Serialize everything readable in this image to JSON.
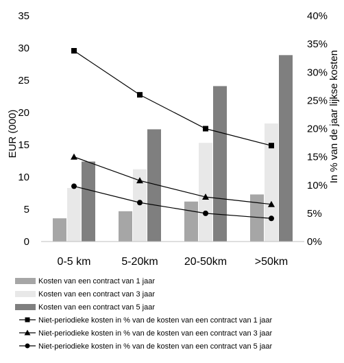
{
  "chart_data": {
    "type": "bar",
    "title": "",
    "categories": [
      "0-5 km",
      "5-20km",
      "20-50km",
      ">50km"
    ],
    "ylabel": "EUR (000)",
    "ylabel_right": "In % van de jaar lijkse kosten",
    "ylim": [
      0,
      35
    ],
    "yticks": [
      "0",
      "5",
      "10",
      "15",
      "20",
      "25",
      "30",
      "35"
    ],
    "ylim_right": [
      0,
      40
    ],
    "yticks_right": [
      "0%",
      "5%",
      "10%",
      "15%",
      "20%",
      "25%",
      "30%",
      "35%",
      "40%"
    ],
    "grid": false,
    "legend_position": "bottom",
    "series": [
      {
        "name": "Kosten van een contract van 1 jaar",
        "type": "bar",
        "axis": "left",
        "color": "#a6a6a6",
        "values": [
          3.6,
          4.7,
          6.2,
          7.3
        ]
      },
      {
        "name": "Kosten van een contract van 3 jaar",
        "type": "bar",
        "axis": "left",
        "color": "#e8e8e8",
        "values": [
          8.3,
          11.2,
          15.3,
          18.3
        ]
      },
      {
        "name": "Kosten van een contract van 5 jaar",
        "type": "bar",
        "axis": "left",
        "color": "#7f7f7f",
        "values": [
          12.4,
          17.4,
          24.1,
          28.9
        ]
      },
      {
        "name": "Niet-periodieke kosten in % van de kosten van een contract van 1 jaar",
        "type": "line",
        "axis": "right",
        "marker": "square",
        "color": "#000000",
        "values": [
          33.8,
          26.0,
          20.0,
          17.0
        ]
      },
      {
        "name": "Niet-periodieke kosten in % van de kosten van een contract van 3 jaar",
        "type": "line",
        "axis": "right",
        "marker": "triangle",
        "color": "#000000",
        "values": [
          15.0,
          10.8,
          7.9,
          6.6
        ]
      },
      {
        "name": "Niet-periodieke kosten in % van de kosten van een contract van 5 jaar",
        "type": "line",
        "axis": "right",
        "marker": "circle",
        "color": "#000000",
        "values": [
          9.8,
          6.9,
          5.0,
          4.1
        ]
      }
    ]
  }
}
